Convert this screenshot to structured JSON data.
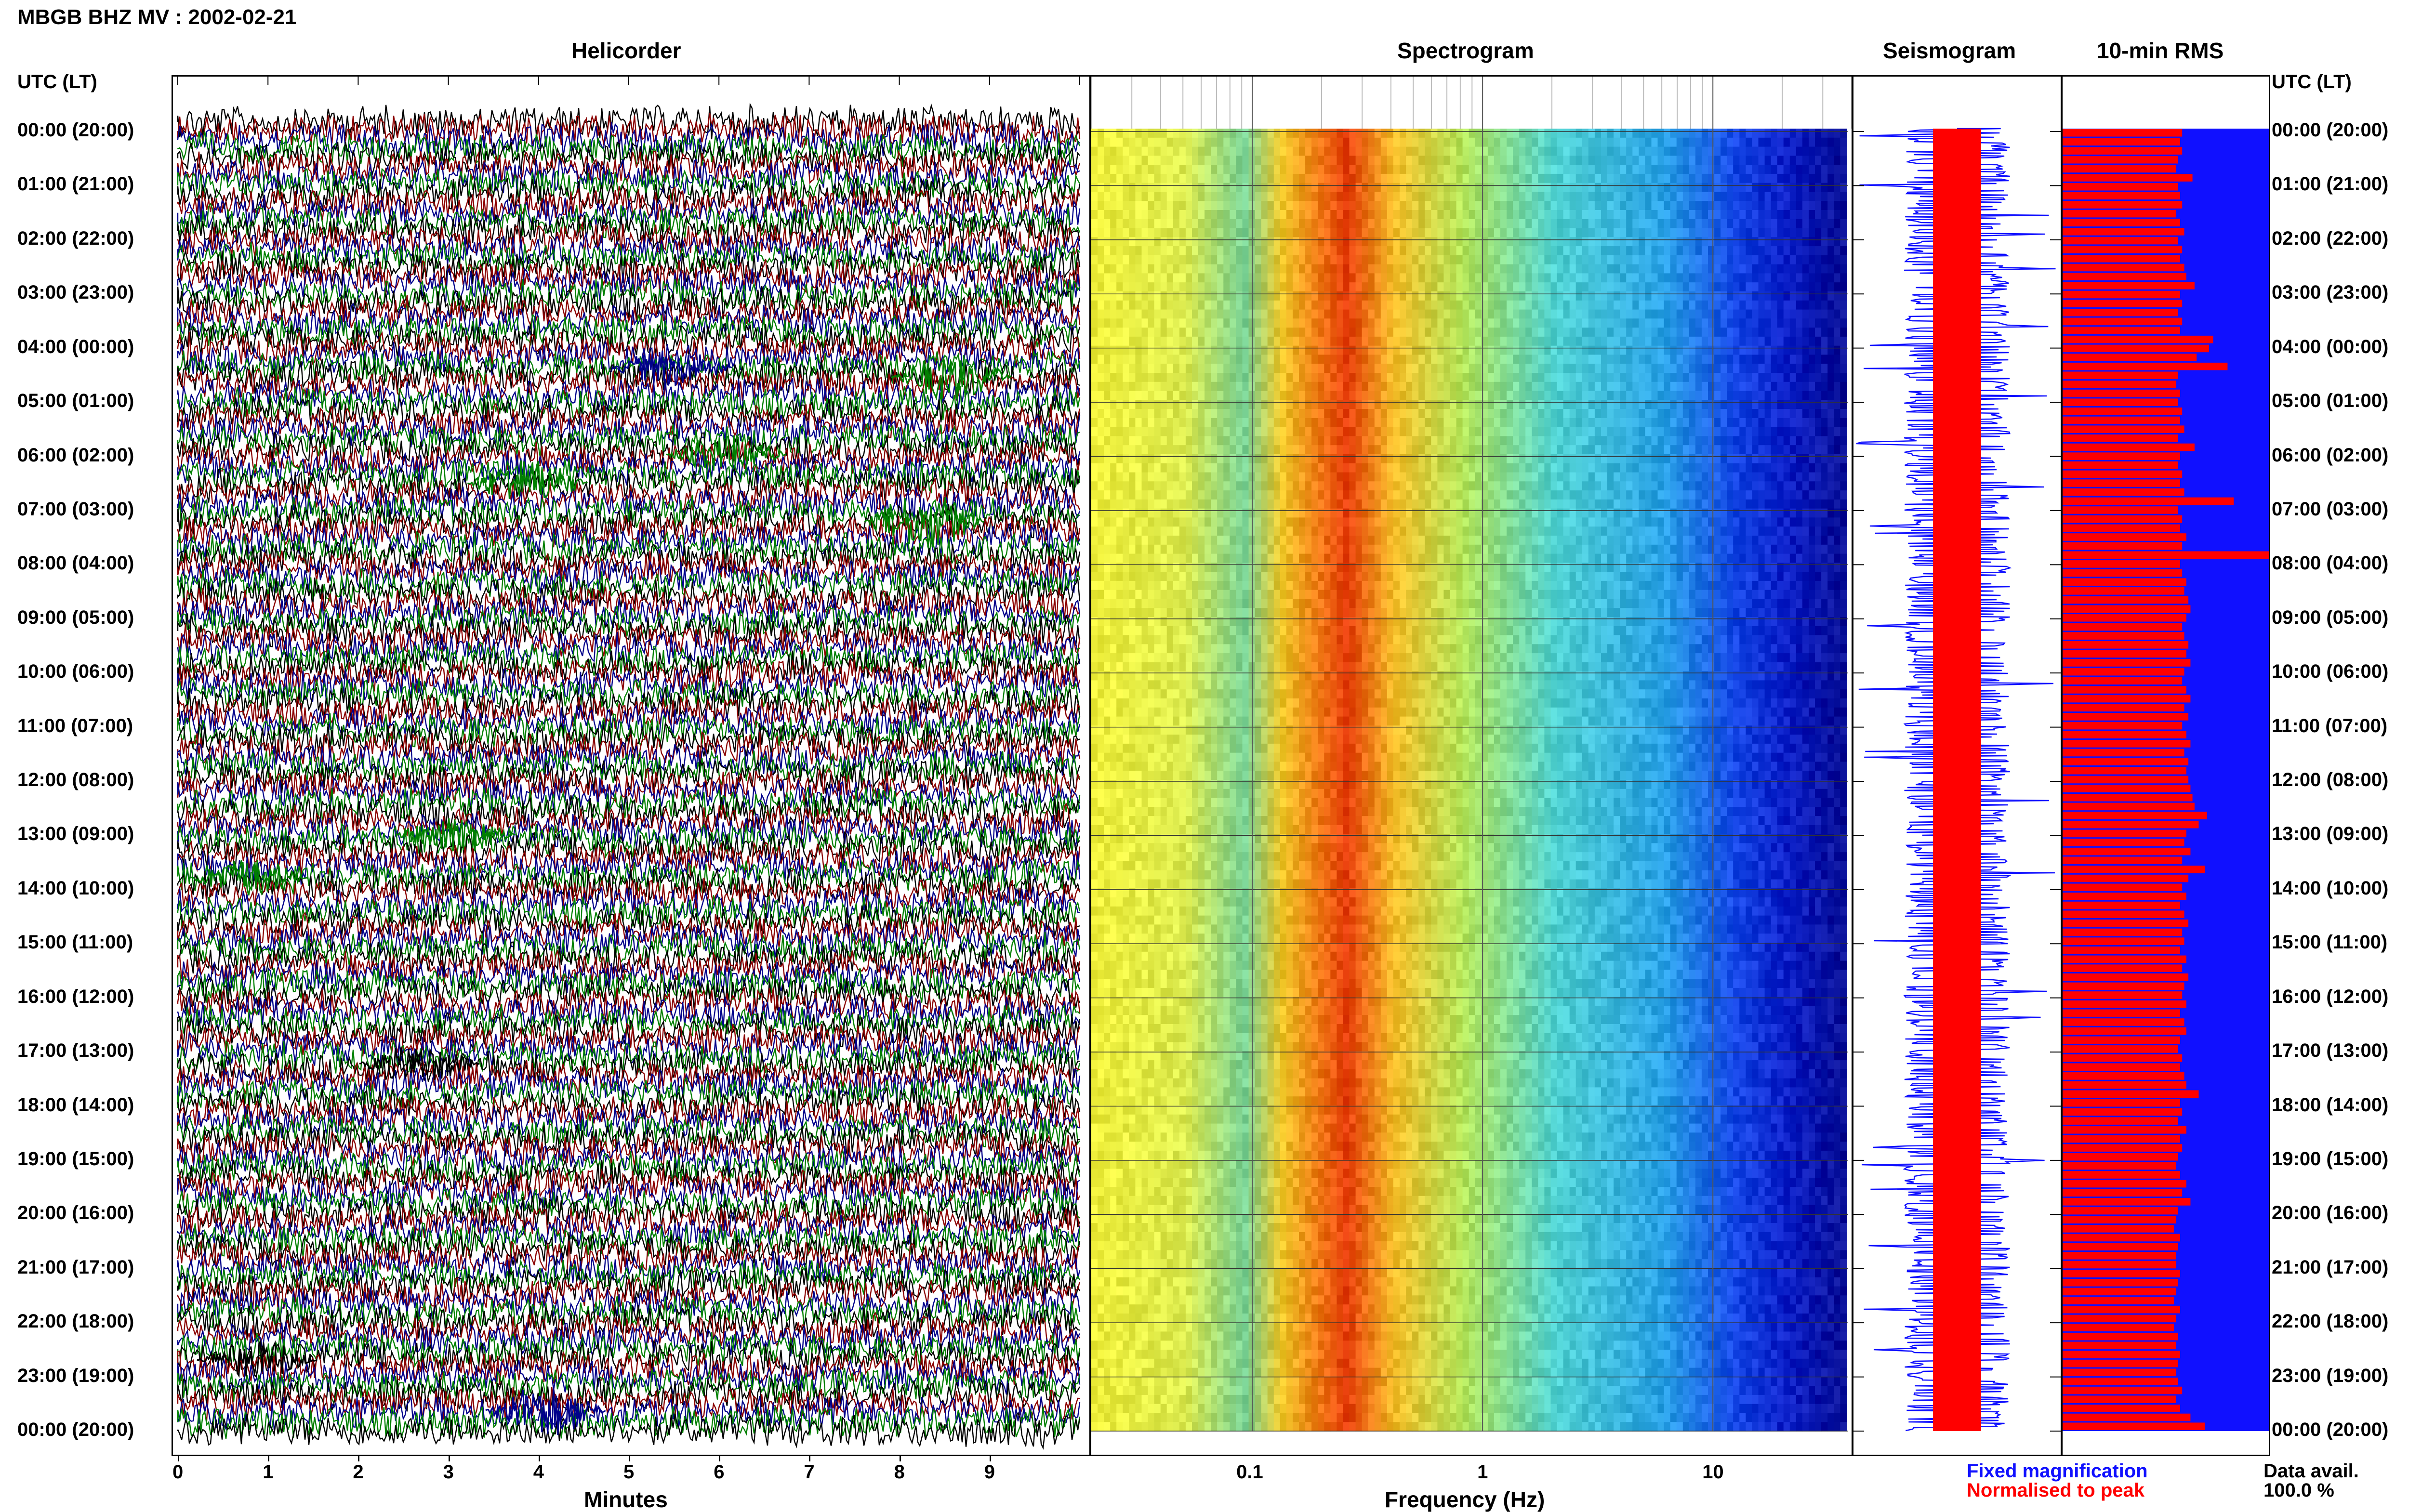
{
  "header": {
    "station_title": "MBGB BHZ MV : 2002-02-21"
  },
  "panels": {
    "helicorder_title": "Helicorder",
    "spectrogram_title": "Spectrogram",
    "seismogram_title": "Seismogram",
    "rms_title": "10-min RMS"
  },
  "axis": {
    "left_header": "UTC (LT)",
    "right_header": "UTC (LT)",
    "minutes_label": "Minutes",
    "frequency_label": "Frequency (Hz)"
  },
  "legend": {
    "fixed_label": "Fixed magnification",
    "fixed_color": "#1010ff",
    "normalised_label": "Normalised to peak",
    "normalised_color": "#ff0000",
    "data_avail_label": "Data avail.",
    "data_avail_value": "100.0 %"
  },
  "chart_data": {
    "type": "heatmap",
    "time_labels": [
      "00:00 (20:00)",
      "01:00 (21:00)",
      "02:00 (22:00)",
      "03:00 (23:00)",
      "04:00 (00:00)",
      "05:00 (01:00)",
      "06:00 (02:00)",
      "07:00 (03:00)",
      "08:00 (04:00)",
      "09:00 (05:00)",
      "10:00 (06:00)",
      "11:00 (07:00)",
      "12:00 (08:00)",
      "13:00 (09:00)",
      "14:00 (10:00)",
      "15:00 (11:00)",
      "16:00 (12:00)",
      "17:00 (13:00)",
      "18:00 (14:00)",
      "19:00 (15:00)",
      "20:00 (16:00)",
      "21:00 (17:00)",
      "22:00 (18:00)",
      "23:00 (19:00)",
      "00:00 (20:00)"
    ],
    "minutes_ticks": [
      "0",
      "1",
      "2",
      "3",
      "4",
      "5",
      "6",
      "7",
      "8",
      "9"
    ],
    "minutes_range": [
      0,
      10
    ],
    "frequency_ticks": [
      "0.1",
      "1",
      "10"
    ],
    "frequency_range": [
      0.02,
      40
    ],
    "frequency_scale": "log",
    "helicorder_trace_colors": [
      "#000000",
      "#8b0000",
      "#00008b",
      "#008000"
    ],
    "spectrogram_peak_frequency_hz": 0.25,
    "rms_series": {
      "name": "10-min RMS",
      "rows_per_hour": 6,
      "relative_values": [
        0.58,
        0.57,
        0.58,
        0.56,
        0.55,
        0.63,
        0.56,
        0.57,
        0.58,
        0.55,
        0.57,
        0.59,
        0.56,
        0.58,
        0.57,
        0.59,
        0.6,
        0.64,
        0.57,
        0.58,
        0.56,
        0.58,
        0.57,
        0.73,
        0.71,
        0.65,
        0.8,
        0.56,
        0.55,
        0.57,
        0.56,
        0.58,
        0.57,
        0.59,
        0.56,
        0.64,
        0.57,
        0.56,
        0.58,
        0.57,
        0.59,
        0.83,
        0.56,
        0.58,
        0.57,
        0.6,
        0.58,
        1.0,
        0.57,
        0.58,
        0.6,
        0.59,
        0.61,
        0.62,
        0.6,
        0.58,
        0.59,
        0.61,
        0.6,
        0.62,
        0.59,
        0.58,
        0.6,
        0.62,
        0.59,
        0.61,
        0.58,
        0.6,
        0.62,
        0.59,
        0.61,
        0.6,
        0.61,
        0.62,
        0.63,
        0.64,
        0.7,
        0.66,
        0.6,
        0.59,
        0.62,
        0.58,
        0.69,
        0.61,
        0.58,
        0.6,
        0.57,
        0.59,
        0.61,
        0.58,
        0.59,
        0.57,
        0.6,
        0.58,
        0.61,
        0.59,
        0.58,
        0.6,
        0.57,
        0.59,
        0.6,
        0.57,
        0.56,
        0.58,
        0.57,
        0.59,
        0.6,
        0.66,
        0.57,
        0.58,
        0.56,
        0.6,
        0.57,
        0.58,
        0.56,
        0.55,
        0.57,
        0.6,
        0.58,
        0.62,
        0.56,
        0.55,
        0.54,
        0.57,
        0.56,
        0.55,
        0.55,
        0.57,
        0.56,
        0.55,
        0.54,
        0.57,
        0.55,
        0.54,
        0.56,
        0.55,
        0.57,
        0.56,
        0.55,
        0.56,
        0.58,
        0.55,
        0.57,
        0.62,
        0.69
      ]
    }
  }
}
